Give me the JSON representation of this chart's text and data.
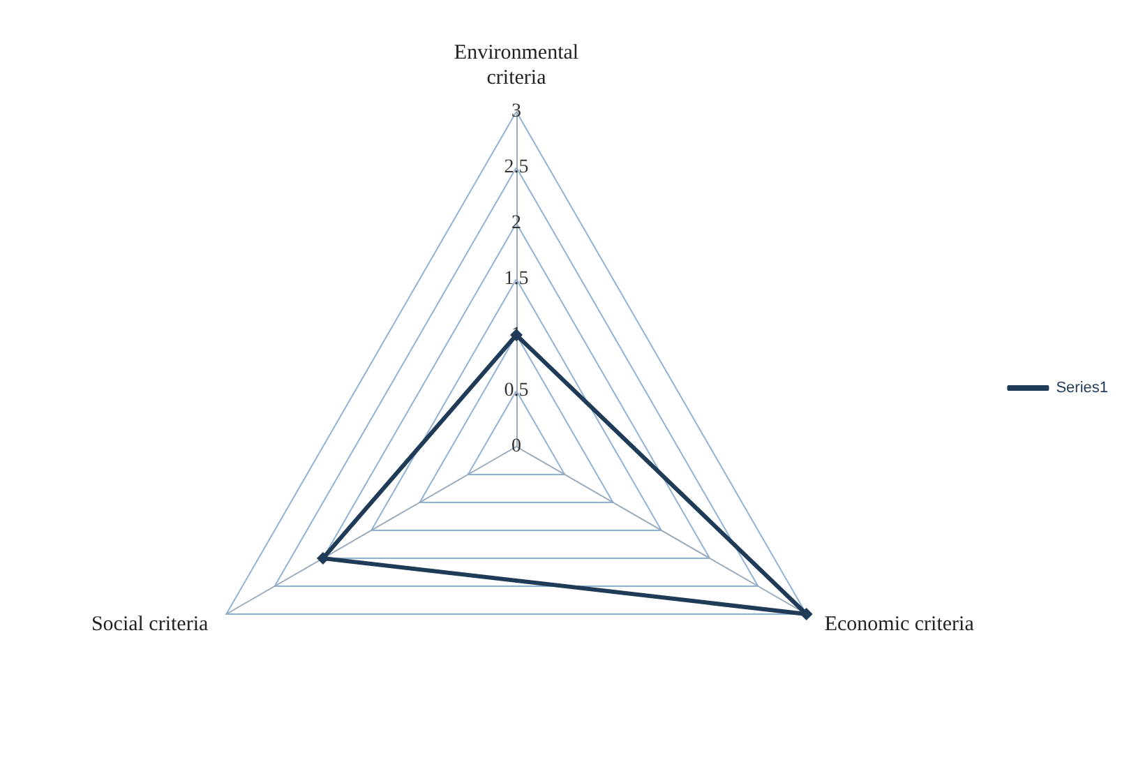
{
  "chart_data": {
    "type": "radar",
    "categories": [
      "Environmental criteria",
      "Economic criteria",
      "Social criteria"
    ],
    "series": [
      {
        "name": "Series1",
        "color": "#1f3b57",
        "values": [
          1,
          3,
          2
        ]
      }
    ],
    "ylim": [
      0,
      3
    ],
    "yticks": [
      0,
      0.5,
      1,
      1.5,
      2,
      2.5,
      3
    ],
    "legend": "right",
    "marker": "diamond",
    "grid": true
  }
}
